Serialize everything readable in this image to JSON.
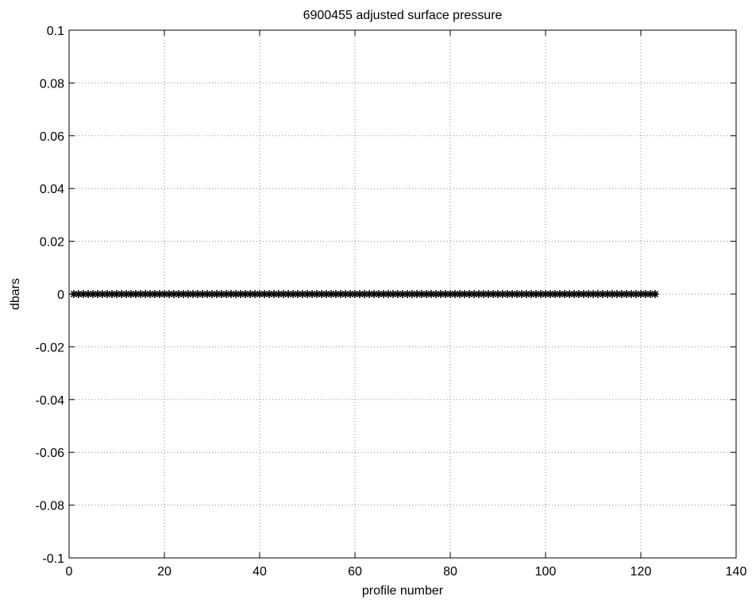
{
  "chart_data": {
    "type": "scatter",
    "title": "6900455 adjusted surface pressure",
    "xlabel": "profile number",
    "ylabel": "dbars",
    "xlim": [
      0,
      140
    ],
    "ylim": [
      -0.1,
      0.1
    ],
    "x_ticks": [
      0,
      20,
      40,
      60,
      80,
      100,
      120,
      140
    ],
    "x_tick_labels": [
      "0",
      "20",
      "40",
      "60",
      "80",
      "100",
      "120",
      "140"
    ],
    "y_ticks": [
      -0.1,
      -0.08,
      -0.06,
      -0.04,
      -0.02,
      0,
      0.02,
      0.04,
      0.06,
      0.08,
      0.1
    ],
    "y_tick_labels": [
      "-0.1",
      "-0.08",
      "-0.06",
      "-0.04",
      "-0.02",
      "0",
      "0.02",
      "0.04",
      "0.06",
      "0.08",
      "0.1"
    ],
    "grid": true,
    "marker": "asterisk",
    "marker_color": "#000000",
    "x_range": [
      1,
      123
    ],
    "y_constant": 0
  }
}
